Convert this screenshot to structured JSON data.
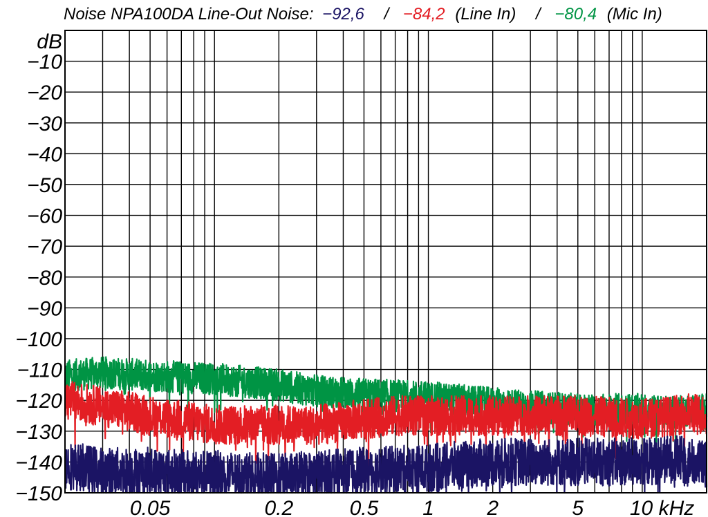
{
  "chart_data": {
    "type": "line",
    "title": {
      "prefix": "Noise NPA100DA Line-Out Noise:",
      "blue_value": "−92,6",
      "sep1": "/",
      "red_value": "−84,2",
      "red_label": "(Line In)",
      "sep2": "/",
      "green_value": "−80,4",
      "green_label": "(Mic In)"
    },
    "ylabel": "dB",
    "xlabel": "kHz",
    "xscale": "log",
    "xlim": [
      0.02,
      20
    ],
    "ylim": [
      -150,
      0
    ],
    "grid": true,
    "x_tick_labels": [
      {
        "value": 0.05,
        "label": "0.05"
      },
      {
        "value": 0.2,
        "label": "0.2"
      },
      {
        "value": 0.5,
        "label": "0.5"
      },
      {
        "value": 1,
        "label": "1"
      },
      {
        "value": 2,
        "label": "2"
      },
      {
        "value": 5,
        "label": "5"
      },
      {
        "value": 10,
        "label": "10 kHz"
      }
    ],
    "y_tick_labels": [
      {
        "value": -10,
        "label": "−10"
      },
      {
        "value": -20,
        "label": "−20"
      },
      {
        "value": -30,
        "label": "−30"
      },
      {
        "value": -40,
        "label": "−40"
      },
      {
        "value": -50,
        "label": "−50"
      },
      {
        "value": -60,
        "label": "−60"
      },
      {
        "value": -70,
        "label": "−70"
      },
      {
        "value": -80,
        "label": "−80"
      },
      {
        "value": -90,
        "label": "−90"
      },
      {
        "value": -100,
        "label": "−100"
      },
      {
        "value": -110,
        "label": "−110"
      },
      {
        "value": -120,
        "label": "−120"
      },
      {
        "value": -130,
        "label": "−130"
      },
      {
        "value": -140,
        "label": "−140"
      },
      {
        "value": -150,
        "label": "−150"
      }
    ],
    "series": [
      {
        "color": "#009444",
        "noise": 4,
        "x": [
          0.02,
          0.03,
          0.05,
          0.1,
          0.2,
          0.3,
          0.5,
          1,
          2,
          3,
          5,
          10,
          14,
          17,
          20
        ],
        "y": [
          -112,
          -111,
          -112,
          -113,
          -115,
          -117,
          -118,
          -119,
          -121,
          -122,
          -123,
          -123,
          -124,
          -123,
          -123
        ]
      },
      {
        "color": "#e31e24",
        "noise": 5,
        "x": [
          0.02,
          0.03,
          0.05,
          0.08,
          0.1,
          0.2,
          0.3,
          0.5,
          0.7,
          1,
          2,
          5,
          10,
          14,
          17,
          20
        ],
        "y": [
          -120,
          -122,
          -125,
          -127,
          -128,
          -128,
          -128,
          -126,
          -125,
          -125,
          -125,
          -125,
          -126,
          -125,
          -124,
          -125
        ]
      },
      {
        "color": "#1b1464",
        "noise": 6,
        "x": [
          0.02,
          0.03,
          0.05,
          0.08,
          0.1,
          0.2,
          0.3,
          0.5,
          1,
          2,
          5,
          10,
          14,
          17,
          20
        ],
        "y": [
          -141,
          -143,
          -143,
          -144,
          -144,
          -145,
          -144,
          -143,
          -142,
          -140,
          -140,
          -140,
          -139,
          -140,
          -141
        ]
      }
    ]
  }
}
